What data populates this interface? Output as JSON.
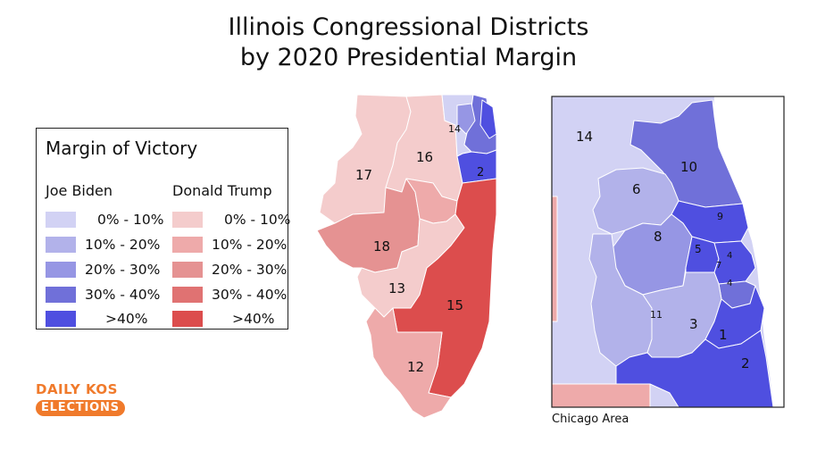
{
  "title_line1": "Illinois Congressional Districts",
  "title_line2": "by 2020 Presidential Margin",
  "legend": {
    "title": "Margin of Victory",
    "biden_header": "Joe Biden",
    "trump_header": "Donald Trump",
    "rows": [
      {
        "label": "0% - 10%",
        "biden_color": "#d2d2f4",
        "trump_color": "#f4cccc"
      },
      {
        "label": "10% - 20%",
        "biden_color": "#b2b2ea",
        "trump_color": "#eeaaaa"
      },
      {
        "label": "20% - 30%",
        "biden_color": "#9696e4",
        "trump_color": "#e59292"
      },
      {
        "label": "30% - 40%",
        "biden_color": "#7070d9",
        "trump_color": "#e07272"
      },
      {
        "label": ">40%",
        "biden_color": "#4f4fe0",
        "trump_color": "#dc4d4d"
      }
    ]
  },
  "logo": {
    "line1": "DAILY KOS",
    "line2": "ELECTIONS",
    "color": "#f07a2b"
  },
  "caption": "Chicago Area",
  "statewide_labels": [
    "14",
    "2",
    "16",
    "17",
    "18",
    "13",
    "15",
    "12"
  ],
  "chicago_labels": [
    "14",
    "10",
    "6",
    "9",
    "8",
    "5",
    "4",
    "7",
    "4",
    "11",
    "3",
    "1",
    "2"
  ]
}
